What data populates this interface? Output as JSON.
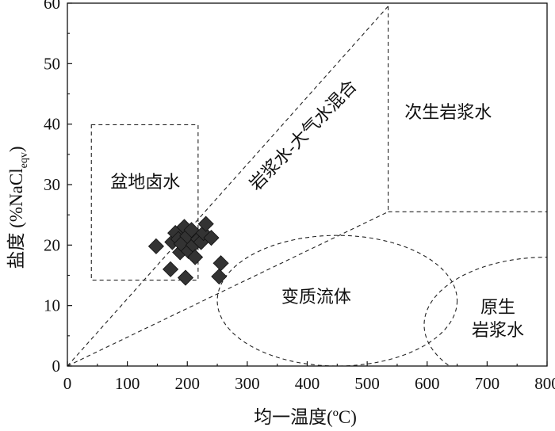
{
  "chart_data": {
    "type": "scatter",
    "xlabel": "均一温度(ºC)",
    "ylabel_main": "盐度 (%NaCl",
    "ylabel_sub": "eqv",
    "ylabel_tail": ")",
    "xlim": [
      0,
      800
    ],
    "ylim": [
      0,
      60
    ],
    "x_ticks": [
      "0",
      "100",
      "200",
      "300",
      "400",
      "500",
      "600",
      "700",
      "800"
    ],
    "y_ticks": [
      "0",
      "10",
      "20",
      "30",
      "40",
      "50",
      "60"
    ],
    "grid": false,
    "marker": "diamond",
    "marker_color": "#333333",
    "series": [
      {
        "points": [
          {
            "x": 148,
            "y": 19.8
          },
          {
            "x": 172,
            "y": 16.0
          },
          {
            "x": 175,
            "y": 20.5
          },
          {
            "x": 180,
            "y": 22.0
          },
          {
            "x": 185,
            "y": 21.0
          },
          {
            "x": 188,
            "y": 18.8
          },
          {
            "x": 190,
            "y": 20.2
          },
          {
            "x": 195,
            "y": 23.0
          },
          {
            "x": 197,
            "y": 14.6
          },
          {
            "x": 200,
            "y": 21.5
          },
          {
            "x": 202,
            "y": 19.0
          },
          {
            "x": 207,
            "y": 22.5
          },
          {
            "x": 210,
            "y": 20.0
          },
          {
            "x": 213,
            "y": 18.0
          },
          {
            "x": 218,
            "y": 21.0
          },
          {
            "x": 223,
            "y": 20.5
          },
          {
            "x": 227,
            "y": 22.0
          },
          {
            "x": 231,
            "y": 23.5
          },
          {
            "x": 240,
            "y": 21.2
          },
          {
            "x": 253,
            "y": 14.8
          },
          {
            "x": 256,
            "y": 17.0
          }
        ]
      }
    ],
    "regions": [
      {
        "label": "盆地卤水",
        "x": 130,
        "y": 29.5
      },
      {
        "label": "岩浆水-大气水混合",
        "x": 400,
        "y": 37.5,
        "rotate": -46
      },
      {
        "label": "次生岩浆水",
        "x": 635,
        "y": 41.0
      },
      {
        "label": "变质流体",
        "x": 415,
        "y": 10.5
      },
      {
        "label": "原生",
        "x": 718,
        "y": 8.8
      },
      {
        "label": "岩浆水",
        "x": 718,
        "y": 5.0
      }
    ]
  }
}
